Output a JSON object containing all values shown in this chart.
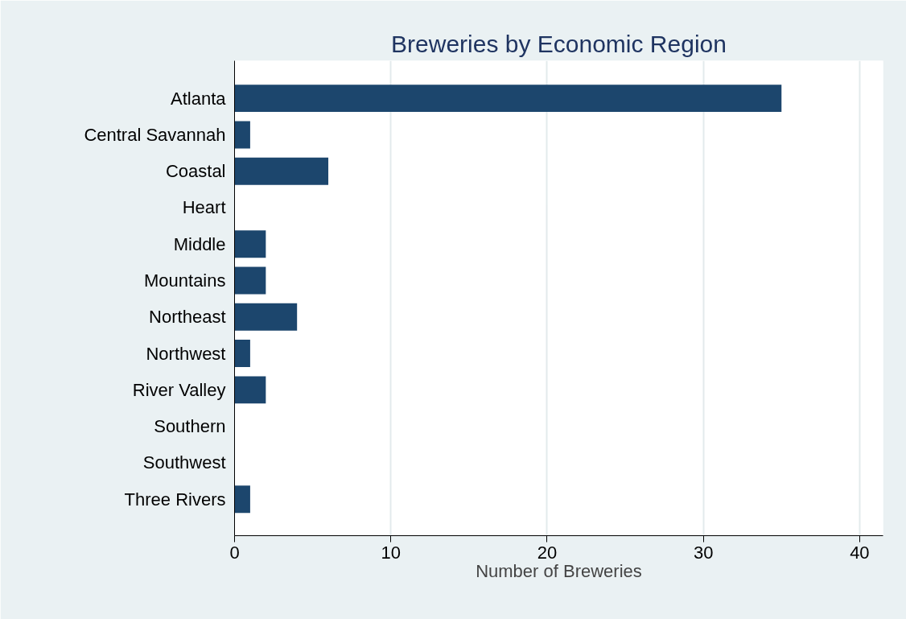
{
  "chart_data": {
    "type": "bar",
    "orientation": "horizontal",
    "title": "Breweries by Economic Region",
    "xlabel": "Number of Breweries",
    "categories": [
      "Atlanta",
      "Central Savannah",
      "Coastal",
      "Heart",
      "Middle",
      "Mountains",
      "Northeast",
      "Northwest",
      "River Valley",
      "Southern",
      "Southwest",
      "Three Rivers"
    ],
    "values": [
      35,
      1,
      6,
      0,
      2,
      2,
      4,
      1,
      2,
      0,
      0,
      1
    ],
    "color": "#1c466d",
    "xlim": [
      0,
      41.5
    ],
    "xticks": [
      0,
      10,
      20,
      30,
      40
    ],
    "grid": "x"
  }
}
